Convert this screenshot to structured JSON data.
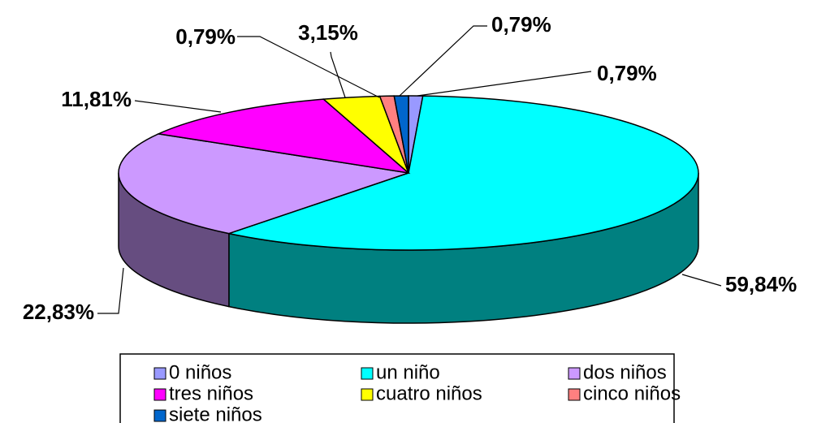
{
  "chart_data": {
    "type": "pie3d",
    "categories": [
      "0 niños",
      "un niño",
      "dos niños",
      "tres niños",
      "cuatro niños",
      "cinco niños",
      "siete niños"
    ],
    "values": [
      0.79,
      59.84,
      22.83,
      11.81,
      3.15,
      0.79,
      0.79
    ],
    "value_labels": [
      "0,79%",
      "59,84%",
      "22,83%",
      "11,81%",
      "3,15%",
      "0,79%",
      "0,79%"
    ],
    "colors": [
      "#9999ff",
      "#00ffff",
      "#cc99ff",
      "#ff00ff",
      "#ffff00",
      "#ff8080",
      "#0066cc"
    ],
    "legend": "bottom"
  }
}
